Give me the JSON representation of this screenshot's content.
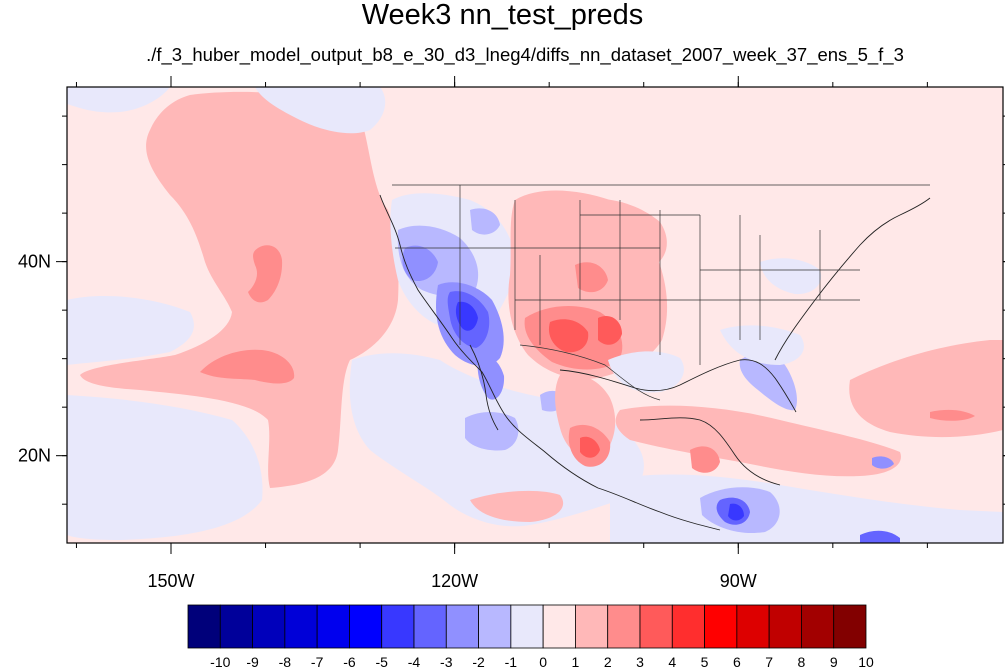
{
  "title": "Week3 nn_test_preds",
  "subtitle": "./f_3_huber_model_output_b8_e_30_d3_lneg4/diffs_nn_dataset_2007_week_37_ens_5_f_3",
  "map": {
    "lon_range": [
      -161,
      -62
    ],
    "lat_range": [
      11,
      58
    ],
    "x_ticks": [
      {
        "lon": -150,
        "label": "150W"
      },
      {
        "lon": -120,
        "label": "120W"
      },
      {
        "lon": -90,
        "label": "90W"
      }
    ],
    "y_ticks": [
      {
        "lat": 40,
        "label": "40N"
      },
      {
        "lat": 20,
        "label": "20N"
      }
    ]
  },
  "colorbar": {
    "levels": [
      "-10",
      "-9",
      "-8",
      "-7",
      "-6",
      "-5",
      "-4",
      "-3",
      "-2",
      "-1",
      "0",
      "1",
      "2",
      "3",
      "4",
      "5",
      "6",
      "7",
      "8",
      "9",
      "10"
    ],
    "colors": [
      "#00007a",
      "#00009a",
      "#0000bb",
      "#0000d8",
      "#0000ee",
      "#0000ff",
      "#3838ff",
      "#6464ff",
      "#9090ff",
      "#b8b8ff",
      "#e8e8fb",
      "#ffe8e8",
      "#ffb8b8",
      "#ff8c8c",
      "#ff5a5a",
      "#ff2e2e",
      "#ff0000",
      "#dd0000",
      "#c00000",
      "#a20000",
      "#820000"
    ]
  },
  "fill_colors": {
    "background": "#ffe8e8",
    "light_blue": "#e8e8fb",
    "blue_1": "#b8b8ff",
    "blue_2": "#9090ff",
    "blue_3": "#6464ff",
    "blue_4": "#3838ff",
    "pink_1": "#ffb8b8",
    "pink_2": "#ff8c8c",
    "red_1": "#ff5a5a",
    "red_2": "#ff2e2e"
  }
}
